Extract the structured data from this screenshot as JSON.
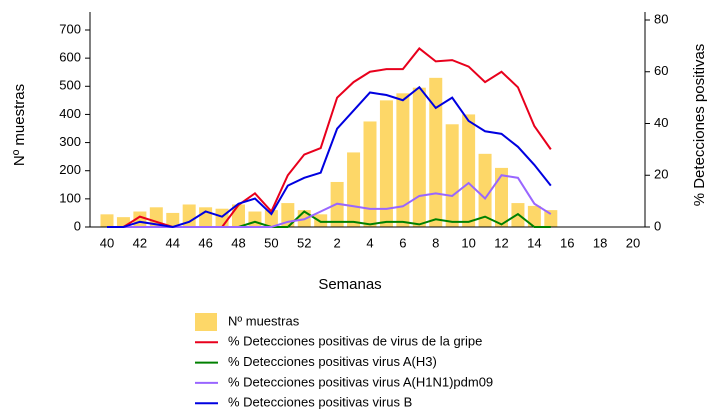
{
  "chart_data": {
    "type": "bar",
    "x_label": "Semanas",
    "y_label": "Nº muestras",
    "y2_label": "% Detecciones positivas",
    "categories": [
      "40",
      null,
      "42",
      null,
      "44",
      null,
      "46",
      null,
      "48",
      null,
      "50",
      null,
      "52",
      null,
      "2",
      null,
      "4",
      null,
      "6",
      null,
      "8",
      null,
      "10",
      null,
      "12",
      null,
      "14",
      null,
      "16",
      null,
      "18",
      null,
      "20"
    ],
    "ylim": [
      0,
      700
    ],
    "yticks": [
      0,
      100,
      200,
      300,
      400,
      500,
      600,
      700
    ],
    "y2lim": [
      0,
      80
    ],
    "y2ticks": [
      0,
      20,
      40,
      60,
      80
    ],
    "series": [
      {
        "name": "Nº muestras",
        "type": "bar",
        "color": "#fdd768",
        "values": [
          45,
          35,
          55,
          70,
          50,
          80,
          70,
          65,
          80,
          55,
          60,
          85,
          60,
          45,
          160,
          265,
          375,
          450,
          475,
          495,
          530,
          365,
          400,
          260,
          210,
          85,
          75,
          60,
          null,
          null,
          null,
          null,
          null
        ]
      },
      {
        "name": "% Detecciones positivas de virus de la gripe",
        "type": "line",
        "axis": "y2",
        "color": "#e8001c",
        "values": [
          0,
          0,
          4,
          2,
          0,
          0,
          0,
          0,
          8.5,
          13,
          6,
          20,
          28,
          30.5,
          50,
          56,
          60,
          61,
          61,
          69,
          64,
          64.5,
          62,
          56,
          60,
          54,
          39,
          30,
          null,
          null,
          null,
          null,
          null
        ]
      },
      {
        "name": "% Detecciones positivas virus A(H3)",
        "type": "line",
        "axis": "y2",
        "color": "#008000",
        "values": [
          0,
          0,
          0,
          0,
          0,
          0,
          0,
          0,
          0,
          2,
          0,
          0,
          6,
          2,
          2,
          2,
          1,
          2,
          2,
          1,
          3,
          2,
          2,
          4,
          1,
          5,
          0,
          0,
          null,
          null,
          null,
          null,
          null
        ]
      },
      {
        "name": "% Detecciones positivas virus A(H1N1)pdm09",
        "type": "line",
        "axis": "y2",
        "color": "#9966ff",
        "values": [
          0,
          0,
          0,
          0,
          0,
          0,
          0,
          0,
          0,
          0,
          0,
          2,
          3,
          6,
          9,
          8,
          7,
          7,
          8,
          12,
          13,
          12,
          17,
          11,
          20,
          19,
          9,
          5,
          null,
          null,
          null,
          null,
          null
        ]
      },
      {
        "name": "% Detecciones positivas virus B",
        "type": "line",
        "axis": "y2",
        "color": "#0000e0",
        "values": [
          0,
          0,
          2,
          1,
          0,
          2,
          6,
          4,
          9,
          11,
          5,
          16,
          19,
          21,
          38,
          45,
          52,
          51,
          49,
          54,
          46,
          50,
          41,
          37,
          36,
          31,
          24,
          16,
          null,
          null,
          null,
          null,
          null
        ]
      }
    ]
  }
}
